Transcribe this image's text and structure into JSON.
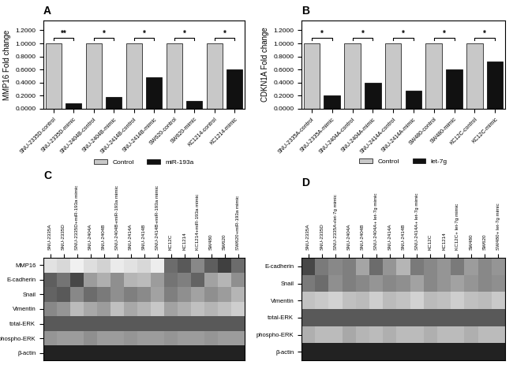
{
  "chart_data": [
    {
      "type": "bar",
      "title": "A",
      "ylabel": "MMP16 Fold change",
      "categories": [
        "SNU-2335D-control",
        "SNU-2335D-mimic",
        "SNU-2404B-control",
        "SNU-2404B-mimic",
        "SNU-2414B-control",
        "SNU-2414B-mimic",
        "SW620-control",
        "SW620-mimic",
        "KC1214-control",
        "KC1214-mimic"
      ],
      "series": [
        {
          "name": "Control",
          "color": "#c8c8c8",
          "values": [
            1.0,
            null,
            1.0,
            null,
            1.0,
            null,
            1.0,
            null,
            1.0,
            null
          ]
        },
        {
          "name": "miR-193a",
          "color": "#111111",
          "values": [
            null,
            0.08,
            null,
            0.18,
            null,
            0.48,
            null,
            0.12,
            null,
            0.6
          ]
        }
      ],
      "ylim": [
        0,
        1.35
      ],
      "yticks": [
        {
          "value": 0.0,
          "label": "0.0000"
        },
        {
          "value": 0.2,
          "label": "0.2000"
        },
        {
          "value": 0.4,
          "label": "0.4000"
        },
        {
          "value": 0.6,
          "label": "0.6000"
        },
        {
          "value": 0.8,
          "label": "0.8000"
        },
        {
          "value": 1.0,
          "label": "1.0000"
        },
        {
          "value": 1.2,
          "label": "1.2000"
        }
      ],
      "annotations": [
        {
          "text": "**",
          "between": [
            "SNU-2335D-control",
            "SNU-2335D-mimic"
          ]
        },
        {
          "text": "*",
          "between": [
            "SNU-2404B-control",
            "SNU-2404B-mimic"
          ]
        },
        {
          "text": "*",
          "between": [
            "SNU-2414B-control",
            "SNU-2414B-mimic"
          ]
        },
        {
          "text": "*",
          "between": [
            "SW620-control",
            "SW620-mimic"
          ]
        },
        {
          "text": "*",
          "between": [
            "KC1214-control",
            "KC1214-mimic"
          ]
        }
      ],
      "legend": "upper center"
    },
    {
      "type": "bar",
      "title": "B",
      "ylabel": "CDKN1A Fold change",
      "categories": [
        "SNU-2335A-control",
        "SNU-2335A-mimic",
        "SNU-2404A-control",
        "SNU-2404A-mimic",
        "SNU-2414A-control",
        "SNU-2414A-mimic",
        "SW480-control",
        "SW480-mimic",
        "KC12C-control",
        "KC12C-mimic"
      ],
      "series": [
        {
          "name": "Control",
          "color": "#c8c8c8",
          "values": [
            1.0,
            null,
            1.0,
            null,
            1.0,
            null,
            1.0,
            null,
            1.0,
            null
          ]
        },
        {
          "name": "let-7g",
          "color": "#111111",
          "values": [
            null,
            0.2,
            null,
            0.4,
            null,
            0.28,
            null,
            0.6,
            null,
            0.72
          ]
        }
      ],
      "ylim": [
        0,
        1.35
      ],
      "yticks": [
        {
          "value": 0.0,
          "label": "0.0000"
        },
        {
          "value": 0.2,
          "label": "0.2000"
        },
        {
          "value": 0.4,
          "label": "0.4000"
        },
        {
          "value": 0.6,
          "label": "0.6000"
        },
        {
          "value": 0.8,
          "label": "0.8000"
        },
        {
          "value": 1.0,
          "label": "1.0000"
        },
        {
          "value": 1.2,
          "label": "1.2000"
        }
      ],
      "annotations": [
        {
          "text": "*",
          "between": [
            "SNU-2335A-control",
            "SNU-2335A-mimic"
          ]
        },
        {
          "text": "*",
          "between": [
            "SNU-2404A-control",
            "SNU-2404A-mimic"
          ]
        },
        {
          "text": "*",
          "between": [
            "SNU-2414A-control",
            "SNU-2414A-mimic"
          ]
        },
        {
          "text": "*",
          "between": [
            "SW480-control",
            "SW480-mimic"
          ]
        },
        {
          "text": "*",
          "between": [
            "KC12C-control",
            "KC12C-mimic"
          ]
        }
      ],
      "legend": "upper center"
    },
    {
      "type": "heatmap",
      "title": "C",
      "x": [
        "SNU-2335A",
        "SNU-2335D",
        "SNU-2335D+miR-193a mimic",
        "SNU-2404A",
        "SNU-2404B",
        "SNU-2404B+miR-193a mimic",
        "SNU-2414A",
        "SNU-2414B",
        "SNU-2414B+miR-193a mimic",
        "KC12C",
        "KC1214",
        "KC1214+miR-193a mimic",
        "SW480",
        "SW620",
        "SW620+miR-193a mimic"
      ],
      "y": [
        "MMP16",
        "E-cadherin",
        "Snail",
        "Vimentin",
        "total-ERK",
        "phospho-ERK",
        "β-actin"
      ],
      "cells": [
        [
          0.2,
          0.25,
          0.12,
          0.22,
          0.28,
          0.15,
          0.2,
          0.25,
          0.14,
          0.65,
          0.72,
          0.55,
          0.7,
          0.8,
          0.65
        ],
        [
          0.7,
          0.62,
          0.78,
          0.48,
          0.42,
          0.52,
          0.4,
          0.38,
          0.48,
          0.62,
          0.58,
          0.68,
          0.46,
          0.4,
          0.52
        ],
        [
          0.68,
          0.72,
          0.55,
          0.65,
          0.6,
          0.52,
          0.58,
          0.54,
          0.46,
          0.58,
          0.52,
          0.46,
          0.52,
          0.48,
          0.4
        ],
        [
          0.55,
          0.5,
          0.38,
          0.44,
          0.48,
          0.36,
          0.44,
          0.4,
          0.33,
          0.46,
          0.42,
          0.36,
          0.4,
          0.36,
          0.3
        ],
        [
          0.72,
          0.72,
          0.72,
          0.72,
          0.72,
          0.72,
          0.72,
          0.72,
          0.72,
          0.72,
          0.72,
          0.72,
          0.72,
          0.72,
          0.72
        ],
        [
          0.5,
          0.48,
          0.48,
          0.52,
          0.48,
          0.48,
          0.5,
          0.48,
          0.48,
          0.5,
          0.48,
          0.48,
          0.5,
          0.48,
          0.48
        ],
        [
          0.88,
          0.88,
          0.88,
          0.88,
          0.88,
          0.88,
          0.88,
          0.88,
          0.88,
          0.88,
          0.88,
          0.88,
          0.88,
          0.88,
          0.88
        ]
      ],
      "color_range": [
        0,
        1
      ]
    },
    {
      "type": "heatmap",
      "title": "D",
      "x": [
        "SNU-2335A",
        "SNU-2335D",
        "SNU-2335A+let-7g mimic",
        "SNU-2404A",
        "SNU-2404B",
        "SNU-2404A+ let-7g mimic",
        "SNU-2414A",
        "SNU-2414B",
        "SNU-2414A+ let-7g mimic",
        "KC12C",
        "KC1214",
        "KC12C+ let-7g mimic",
        "SW480",
        "SW620",
        "SW480+ let-7g mimic"
      ],
      "y": [
        "E-cadherin",
        "Snail",
        "Vimentin",
        "total-ERK",
        "phospho-ERK",
        "β-actin"
      ],
      "cells": [
        [
          0.78,
          0.6,
          0.55,
          0.58,
          0.45,
          0.65,
          0.5,
          0.4,
          0.6,
          0.55,
          0.5,
          0.6,
          0.48,
          0.55,
          0.5
        ],
        [
          0.6,
          0.65,
          0.52,
          0.58,
          0.55,
          0.5,
          0.55,
          0.52,
          0.46,
          0.55,
          0.5,
          0.46,
          0.5,
          0.55,
          0.52
        ],
        [
          0.35,
          0.32,
          0.28,
          0.36,
          0.38,
          0.3,
          0.38,
          0.35,
          0.28,
          0.38,
          0.36,
          0.3,
          0.36,
          0.38,
          0.32
        ],
        [
          0.72,
          0.72,
          0.72,
          0.72,
          0.72,
          0.72,
          0.72,
          0.72,
          0.72,
          0.72,
          0.72,
          0.72,
          0.72,
          0.72,
          0.72
        ],
        [
          0.42,
          0.38,
          0.38,
          0.44,
          0.4,
          0.38,
          0.42,
          0.38,
          0.38,
          0.42,
          0.38,
          0.38,
          0.42,
          0.38,
          0.38
        ],
        [
          0.88,
          0.88,
          0.88,
          0.88,
          0.88,
          0.88,
          0.88,
          0.88,
          0.88,
          0.88,
          0.88,
          0.88,
          0.88,
          0.88,
          0.88
        ]
      ],
      "color_range": [
        0,
        1
      ]
    }
  ]
}
